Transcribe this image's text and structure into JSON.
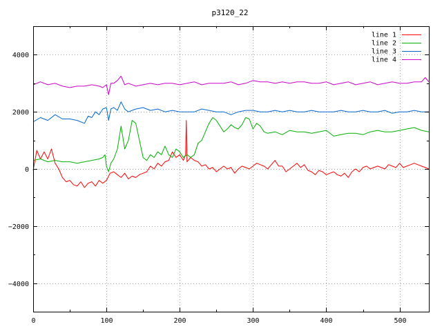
{
  "chart_data": {
    "type": "line",
    "title": "p3120_22",
    "xlabel": "",
    "ylabel": "",
    "xlim": [
      0,
      540
    ],
    "ylim": [
      -5000,
      5000
    ],
    "xticks": [
      0,
      100,
      200,
      300,
      400,
      500
    ],
    "yticks": [
      -4000,
      -2000,
      0,
      2000,
      4000
    ],
    "grid": true,
    "legend_position": "top-right",
    "series": [
      {
        "name": "line 1",
        "color": "#ff0000",
        "x": [
          0,
          5,
          10,
          15,
          20,
          25,
          30,
          35,
          40,
          45,
          50,
          55,
          60,
          65,
          70,
          75,
          80,
          85,
          90,
          95,
          100,
          105,
          110,
          115,
          120,
          125,
          130,
          135,
          140,
          145,
          150,
          155,
          160,
          165,
          170,
          175,
          180,
          185,
          190,
          195,
          200,
          205,
          208,
          209,
          210,
          215,
          220,
          225,
          230,
          235,
          240,
          245,
          250,
          255,
          260,
          265,
          270,
          275,
          280,
          285,
          290,
          295,
          300,
          305,
          310,
          315,
          320,
          325,
          330,
          335,
          340,
          345,
          350,
          355,
          360,
          365,
          370,
          375,
          380,
          385,
          390,
          395,
          400,
          405,
          410,
          415,
          420,
          425,
          430,
          435,
          440,
          445,
          450,
          455,
          460,
          465,
          470,
          475,
          480,
          485,
          490,
          495,
          500,
          505,
          510,
          515,
          520,
          525,
          530,
          535,
          540
        ],
        "y": [
          -50,
          650,
          350,
          600,
          350,
          700,
          200,
          0,
          -300,
          -450,
          -400,
          -550,
          -600,
          -450,
          -650,
          -500,
          -450,
          -600,
          -400,
          -500,
          -400,
          -150,
          -100,
          -200,
          -300,
          -150,
          -350,
          -250,
          -300,
          -200,
          -150,
          -100,
          100,
          0,
          200,
          100,
          250,
          300,
          600,
          400,
          500,
          300,
          500,
          1700,
          250,
          400,
          300,
          250,
          100,
          150,
          0,
          50,
          -100,
          0,
          100,
          0,
          50,
          -150,
          0,
          100,
          50,
          0,
          100,
          200,
          150,
          100,
          0,
          150,
          300,
          100,
          100,
          -100,
          0,
          100,
          200,
          50,
          150,
          -50,
          -100,
          -200,
          -50,
          -100,
          -200,
          -150,
          -100,
          -200,
          -250,
          -150,
          -300,
          -100,
          0,
          -100,
          50,
          100,
          0,
          50,
          100,
          50,
          0,
          150,
          100,
          50,
          200,
          50,
          100,
          150,
          200,
          150,
          100,
          50,
          0
        ]
      },
      {
        "name": "line 2",
        "color": "#00b000",
        "x": [
          0,
          10,
          20,
          30,
          40,
          50,
          60,
          70,
          80,
          90,
          95,
          98,
          100,
          103,
          106,
          110,
          115,
          120,
          125,
          130,
          135,
          140,
          145,
          150,
          155,
          160,
          165,
          170,
          175,
          180,
          185,
          190,
          195,
          200,
          205,
          210,
          215,
          220,
          225,
          230,
          235,
          240,
          245,
          250,
          255,
          260,
          265,
          270,
          275,
          280,
          285,
          290,
          295,
          300,
          305,
          310,
          315,
          320,
          330,
          340,
          350,
          360,
          370,
          380,
          390,
          400,
          410,
          420,
          430,
          440,
          450,
          460,
          470,
          480,
          490,
          500,
          510,
          520,
          530,
          540
        ],
        "y": [
          300,
          350,
          250,
          300,
          250,
          250,
          200,
          250,
          300,
          350,
          400,
          500,
          100,
          -100,
          200,
          350,
          700,
          1500,
          700,
          1000,
          1700,
          1600,
          1000,
          400,
          300,
          500,
          400,
          600,
          500,
          800,
          500,
          400,
          700,
          600,
          400,
          500,
          400,
          500,
          900,
          1000,
          1300,
          1600,
          1800,
          1700,
          1500,
          1300,
          1400,
          1550,
          1450,
          1400,
          1550,
          1800,
          1750,
          1400,
          1600,
          1500,
          1300,
          1250,
          1300,
          1200,
          1350,
          1300,
          1300,
          1250,
          1300,
          1350,
          1150,
          1200,
          1250,
          1250,
          1200,
          1300,
          1350,
          1300,
          1300,
          1350,
          1400,
          1450,
          1350,
          1300
        ]
      },
      {
        "name": "line 3",
        "color": "#0066cc",
        "x": [
          0,
          10,
          20,
          30,
          40,
          50,
          60,
          70,
          75,
          80,
          85,
          90,
          95,
          100,
          103,
          106,
          110,
          115,
          120,
          125,
          130,
          135,
          140,
          150,
          160,
          170,
          180,
          190,
          200,
          210,
          220,
          230,
          240,
          250,
          260,
          270,
          280,
          290,
          300,
          310,
          320,
          330,
          340,
          350,
          360,
          370,
          380,
          390,
          400,
          410,
          420,
          430,
          440,
          450,
          460,
          470,
          480,
          490,
          500,
          510,
          520,
          530,
          540
        ],
        "y": [
          1650,
          1800,
          1700,
          1900,
          1750,
          1750,
          1700,
          1600,
          1850,
          1800,
          2000,
          1900,
          2100,
          2150,
          1700,
          2100,
          2150,
          2050,
          2350,
          2100,
          2000,
          2050,
          2100,
          2150,
          2050,
          2100,
          2000,
          2050,
          2000,
          2000,
          2000,
          2100,
          2050,
          2000,
          2000,
          1900,
          2000,
          2050,
          2050,
          2000,
          2000,
          2050,
          2000,
          2050,
          2000,
          2000,
          2050,
          2000,
          2000,
          2000,
          2050,
          2000,
          2000,
          2050,
          2000,
          2000,
          2050,
          1950,
          2000,
          2000,
          2050,
          2000,
          2000
        ]
      },
      {
        "name": "line 4",
        "color": "#cc00cc",
        "x": [
          0,
          10,
          20,
          30,
          40,
          50,
          60,
          70,
          80,
          90,
          95,
          100,
          103,
          106,
          110,
          115,
          120,
          125,
          130,
          140,
          150,
          160,
          170,
          180,
          190,
          200,
          210,
          220,
          230,
          240,
          250,
          260,
          270,
          280,
          290,
          300,
          310,
          320,
          330,
          340,
          350,
          360,
          370,
          380,
          390,
          400,
          410,
          420,
          430,
          440,
          450,
          460,
          470,
          480,
          490,
          500,
          510,
          520,
          530,
          535,
          540
        ],
        "y": [
          2950,
          3050,
          2950,
          3000,
          2900,
          2850,
          2900,
          2900,
          2950,
          2900,
          2850,
          2950,
          2600,
          3000,
          3000,
          3100,
          3250,
          2950,
          3000,
          2900,
          2950,
          3000,
          2950,
          3000,
          3000,
          2950,
          3000,
          3050,
          2950,
          3000,
          3000,
          3000,
          3050,
          2950,
          3000,
          3100,
          3050,
          3050,
          3000,
          3050,
          3000,
          3050,
          3050,
          3000,
          3000,
          3050,
          2950,
          3000,
          3050,
          2950,
          3000,
          3050,
          2950,
          3000,
          3050,
          3000,
          3000,
          3050,
          3050,
          3200,
          3050
        ]
      }
    ]
  }
}
